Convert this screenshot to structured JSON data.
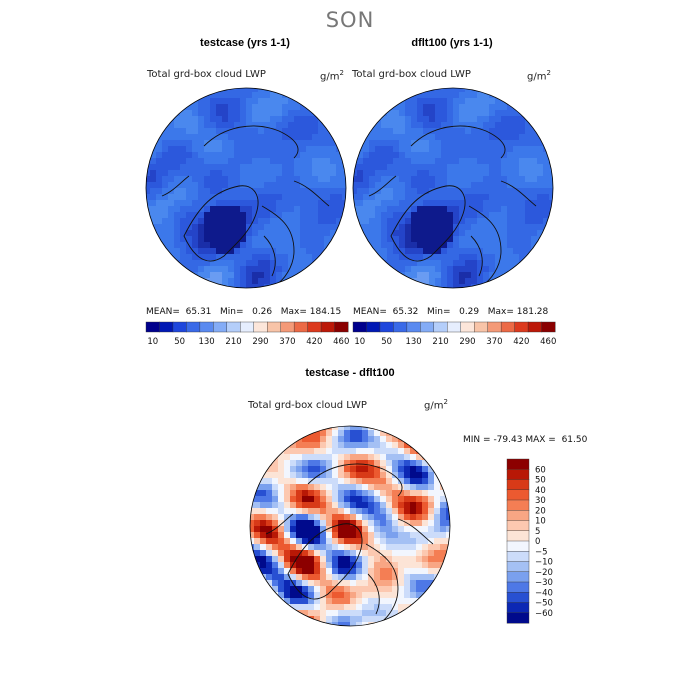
{
  "season": "SON",
  "chart_data": [
    {
      "type": "heatmap",
      "projection": "north polar stereographic",
      "title": "testcase (yrs 1-1)",
      "variable": "Total grd-box cloud LWP",
      "units": "g/m",
      "units_exp": "2",
      "stats": {
        "mean_label": "MEAN=",
        "mean": "65.31",
        "min_label": "Min=",
        "min": "0.26",
        "max_label": "Max=",
        "max": "184.15"
      },
      "colorbar": {
        "orientation": "horizontal",
        "levels": [
          "10",
          "50",
          "130",
          "210",
          "290",
          "370",
          "420",
          "460"
        ],
        "colors": [
          "#00008c",
          "#0018b4",
          "#1e46dc",
          "#3a6ae8",
          "#5a8af0",
          "#84acf6",
          "#b4cefa",
          "#e6eefe",
          "#fce6da",
          "#f8c4a8",
          "#f49a78",
          "#ec6a46",
          "#dc3a1e",
          "#bc1808",
          "#8a0000"
        ]
      }
    },
    {
      "type": "heatmap",
      "projection": "north polar stereographic",
      "title": "dflt100 (yrs 1-1)",
      "variable": "Total grd-box cloud LWP",
      "units": "g/m",
      "units_exp": "2",
      "stats": {
        "mean_label": "MEAN=",
        "mean": "65.32",
        "min_label": "Min=",
        "min": "0.29",
        "max_label": "Max=",
        "max": "181.28"
      },
      "colorbar": {
        "orientation": "horizontal",
        "levels": [
          "10",
          "50",
          "130",
          "210",
          "290",
          "370",
          "420",
          "460"
        ],
        "colors": [
          "#00008c",
          "#0018b4",
          "#1e46dc",
          "#3a6ae8",
          "#5a8af0",
          "#84acf6",
          "#b4cefa",
          "#e6eefe",
          "#fce6da",
          "#f8c4a8",
          "#f49a78",
          "#ec6a46",
          "#dc3a1e",
          "#bc1808",
          "#8a0000"
        ]
      }
    },
    {
      "type": "heatmap",
      "projection": "north polar stereographic",
      "title": "testcase - dflt100",
      "variable": "Total grd-box cloud LWP",
      "units": "g/m",
      "units_exp": "2",
      "stats": {
        "min_label": "MIN =",
        "min": "-79.43",
        "max_label": "MAX =",
        "max": "61.50"
      },
      "colorbar": {
        "orientation": "vertical",
        "levels": [
          "60",
          "50",
          "40",
          "30",
          "20",
          "10",
          "5",
          "0",
          "−5",
          "−10",
          "−20",
          "−30",
          "−40",
          "−50",
          "−60"
        ],
        "colors": [
          "#8c0000",
          "#b81806",
          "#d83a18",
          "#ec5a30",
          "#f47e54",
          "#f8a684",
          "#fcc8b0",
          "#fce4d6",
          "#f2f6fe",
          "#ccdcfa",
          "#a4c0f4",
          "#7aa0ee",
          "#4e78e6",
          "#2850d2",
          "#0c28b4",
          "#000a8c"
        ]
      }
    }
  ]
}
